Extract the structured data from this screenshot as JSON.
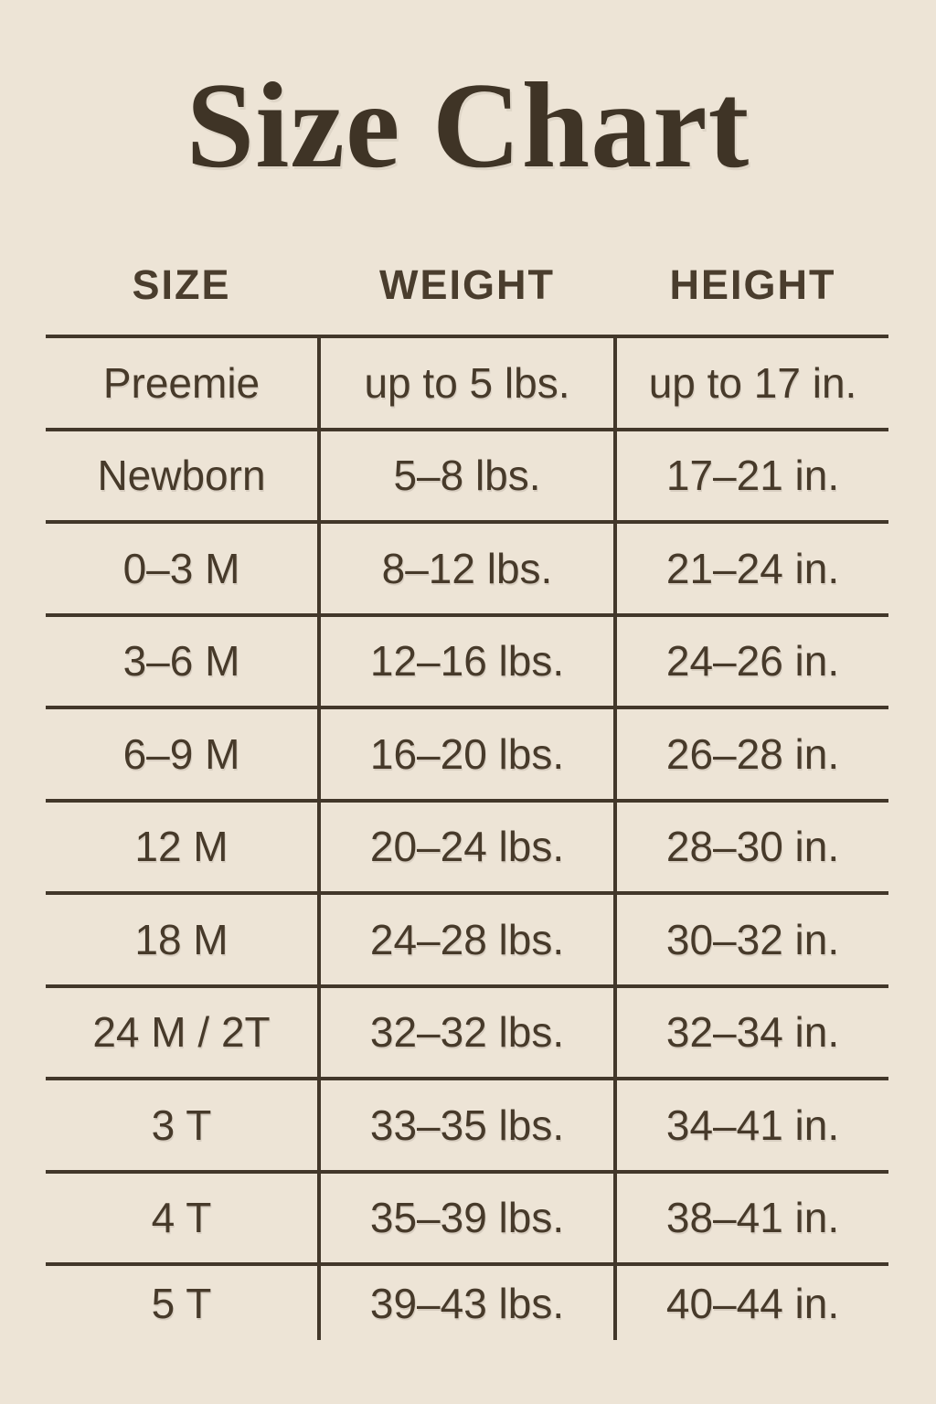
{
  "title": "Size Chart",
  "colors": {
    "background": "#ede4d6",
    "text": "#46392b",
    "line": "#42372a"
  },
  "chart_data": {
    "type": "table",
    "title": "Size Chart",
    "columns": [
      "SIZE",
      "WEIGHT",
      "HEIGHT"
    ],
    "rows": [
      {
        "size": "Preemie",
        "weight": "up to 5 lbs.",
        "height": "up to 17 in."
      },
      {
        "size": "Newborn",
        "weight": "5–8 lbs.",
        "height": "17–21 in."
      },
      {
        "size": "0–3 M",
        "weight": "8–12 lbs.",
        "height": "21–24 in."
      },
      {
        "size": "3–6 M",
        "weight": "12–16 lbs.",
        "height": "24–26 in."
      },
      {
        "size": "6–9 M",
        "weight": "16–20 lbs.",
        "height": "26–28 in."
      },
      {
        "size": "12 M",
        "weight": "20–24 lbs.",
        "height": "28–30 in."
      },
      {
        "size": "18 M",
        "weight": "24–28 lbs.",
        "height": "30–32 in."
      },
      {
        "size": "24 M / 2T",
        "weight": "32–32 lbs.",
        "height": "32–34 in."
      },
      {
        "size": "3 T",
        "weight": "33–35 lbs.",
        "height": "34–41 in."
      },
      {
        "size": "4 T",
        "weight": "35–39 lbs.",
        "height": "38–41 in."
      },
      {
        "size": "5 T",
        "weight": "39–43 lbs.",
        "height": "40–44 in."
      }
    ]
  }
}
